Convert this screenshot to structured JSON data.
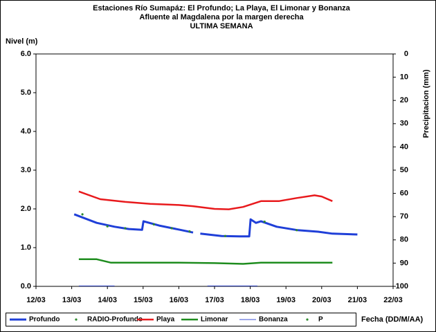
{
  "chart_data": {
    "type": "line",
    "title": [
      "Estaciones Río Sumapáz: El Profundo; La Playa, El Limonar y Bonanza",
      "Afluente al Magdalena por la margen derecha",
      "ULTIMA SEMANA"
    ],
    "y_label": "Nivel (m)",
    "y2_label": "Precipitacion (mm)",
    "x_label": "Fecha (DD/M/AA)",
    "xlim": [
      12,
      22
    ],
    "xticks": [
      {
        "value": 12,
        "label": "12/03"
      },
      {
        "value": 13,
        "label": "13/03"
      },
      {
        "value": 14,
        "label": "14/03"
      },
      {
        "value": 15,
        "label": "15/03"
      },
      {
        "value": 16,
        "label": "16/03"
      },
      {
        "value": 17,
        "label": "17/03"
      },
      {
        "value": 18,
        "label": "18/03"
      },
      {
        "value": 19,
        "label": "19/03"
      },
      {
        "value": 20,
        "label": "20/03"
      },
      {
        "value": 21,
        "label": "21/03"
      },
      {
        "value": 22,
        "label": "22/03"
      }
    ],
    "ylim": [
      0,
      6
    ],
    "yticks": [
      {
        "value": 0,
        "label": "0.0"
      },
      {
        "value": 1,
        "label": "1.0"
      },
      {
        "value": 2,
        "label": "2.0"
      },
      {
        "value": 3,
        "label": "3.0"
      },
      {
        "value": 4,
        "label": "4.0"
      },
      {
        "value": 5,
        "label": "5.0"
      },
      {
        "value": 6,
        "label": "6.0"
      }
    ],
    "y2lim": [
      100,
      0
    ],
    "y2ticks": [
      0,
      10,
      20,
      30,
      40,
      50,
      60,
      70,
      80,
      90,
      100
    ],
    "legend": "bottom",
    "series": [
      {
        "name": "Profundo",
        "color": "#1f3fd8",
        "style": "thick",
        "x": [
          13.07,
          13.7,
          14.2,
          14.6,
          14.97,
          15.01,
          15.45,
          16.03,
          16.4,
          16.5,
          16.6,
          17.2,
          17.7,
          17.97,
          18.01,
          18.16,
          18.3,
          18.74,
          19.33,
          19.9,
          20.3,
          21.0
        ],
        "values": [
          1.86,
          1.64,
          1.54,
          1.48,
          1.46,
          1.68,
          1.57,
          1.46,
          1.39,
          null,
          1.36,
          1.3,
          1.29,
          1.29,
          1.73,
          1.64,
          1.68,
          1.54,
          1.45,
          1.41,
          1.36,
          1.34
        ]
      },
      {
        "name": "RADIO-Profundo",
        "color": "#2e8b2e",
        "style": "dots",
        "x": [
          13.3,
          14.0,
          14.5,
          15.3,
          15.8,
          16.3,
          17.3,
          18.4,
          19.3
        ],
        "values": [
          1.86,
          1.55,
          1.5,
          1.6,
          1.5,
          1.42,
          1.3,
          1.67,
          1.45
        ]
      },
      {
        "name": "Playa",
        "color": "#e8191c",
        "style": "line",
        "x": [
          13.2,
          13.8,
          14.5,
          15.2,
          16.0,
          16.4,
          17.0,
          17.4,
          17.8,
          18.3,
          18.8,
          19.3,
          19.8,
          20.0,
          20.3
        ],
        "values": [
          2.45,
          2.25,
          2.18,
          2.13,
          2.1,
          2.07,
          2.0,
          1.99,
          2.05,
          2.2,
          2.2,
          2.28,
          2.35,
          2.32,
          2.2
        ]
      },
      {
        "name": "Limonar",
        "color": "#1e8c1e",
        "style": "line",
        "x": [
          13.2,
          13.7,
          14.1,
          15.0,
          16.0,
          17.0,
          17.8,
          18.3,
          19.0,
          20.3
        ],
        "values": [
          0.7,
          0.7,
          0.61,
          0.61,
          0.61,
          0.6,
          0.58,
          0.61,
          0.61,
          0.61
        ]
      },
      {
        "name": "Bonanza",
        "color": "#3b4fd0",
        "style": "thin",
        "x": [
          13.2,
          14.2,
          15.0,
          16.8,
          18.2
        ],
        "values": [
          0.01,
          0.01,
          null,
          0.01,
          0.01
        ]
      },
      {
        "name": "P",
        "color": "#2e8b2e",
        "style": "dots",
        "axis": "y2",
        "x": [],
        "values": []
      }
    ]
  }
}
